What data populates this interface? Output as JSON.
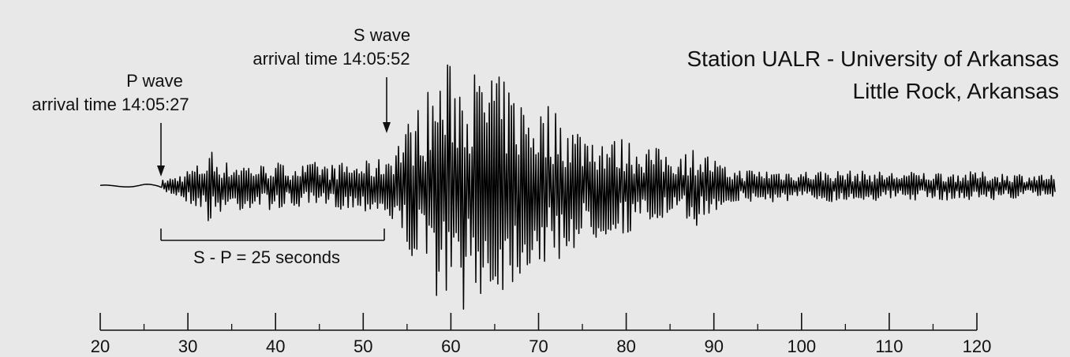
{
  "station": {
    "line1": "Station UALR - University of Arkansas",
    "line2": "Little Rock, Arkansas"
  },
  "annotations": {
    "p_wave": {
      "title": "P wave",
      "detail": "arrival time 14:05:27"
    },
    "s_wave": {
      "title": "S wave",
      "detail": "arrival time 14:05:52"
    },
    "interval": "S - P = 25 seconds"
  },
  "chart_data": {
    "type": "line",
    "title": "",
    "xlabel": "",
    "ylabel": "",
    "xlim": [
      20,
      129
    ],
    "ylim": [
      -100,
      100
    ],
    "x_major_ticks": [
      20,
      30,
      40,
      50,
      60,
      70,
      80,
      90,
      100,
      110,
      120
    ],
    "x_minor_ticks": [
      25,
      35,
      45,
      55,
      65,
      75,
      85,
      95,
      105,
      115
    ],
    "p_wave_time": 27,
    "s_wave_time": 52,
    "s_minus_p_seconds": 25,
    "series": [
      {
        "x": [
          20.0,
          23.0,
          25.0,
          26.5,
          27.0,
          28.0,
          29.0,
          30.0,
          31.0,
          32.0,
          32.5,
          33.0,
          34.0,
          35.0,
          36.0,
          37.0,
          38.0,
          39.0,
          40.0,
          41.0,
          42.0,
          43.0,
          44.0,
          45.0,
          46.0,
          47.0,
          48.0,
          49.0,
          50.0,
          51.0,
          52.0,
          53.0,
          54.0,
          55.0,
          56.0,
          57.0,
          58.0,
          59.0,
          60.0,
          61.0,
          62.0,
          63.0,
          64.0,
          64.5,
          65.0,
          66.0,
          67.0,
          68.0,
          69.0,
          70.0,
          71.0,
          72.0,
          73.0,
          74.0,
          75.0,
          76.0,
          77.0,
          78.0,
          79.0,
          80.0,
          81.0,
          82.0,
          83.0,
          84.0,
          85.0,
          86.0,
          87.0,
          88.0,
          89.0,
          90.0,
          91.0,
          92.0,
          95.0,
          100.0,
          105.0,
          110.0,
          115.0,
          120.0,
          125.0,
          129.0
        ],
        "envelope": [
          1,
          1,
          2,
          2,
          4,
          6,
          8,
          12,
          15,
          18,
          30,
          22,
          18,
          16,
          18,
          16,
          15,
          16,
          18,
          15,
          17,
          15,
          16,
          18,
          15,
          16,
          17,
          16,
          18,
          17,
          20,
          25,
          35,
          45,
          55,
          65,
          75,
          82,
          90,
          85,
          90,
          80,
          75,
          100,
          80,
          75,
          70,
          65,
          60,
          55,
          60,
          55,
          50,
          45,
          42,
          40,
          38,
          35,
          33,
          35,
          30,
          32,
          28,
          26,
          25,
          26,
          25,
          28,
          24,
          20,
          14,
          12,
          12,
          11,
          11,
          10,
          10,
          10,
          9,
          8
        ]
      }
    ]
  }
}
